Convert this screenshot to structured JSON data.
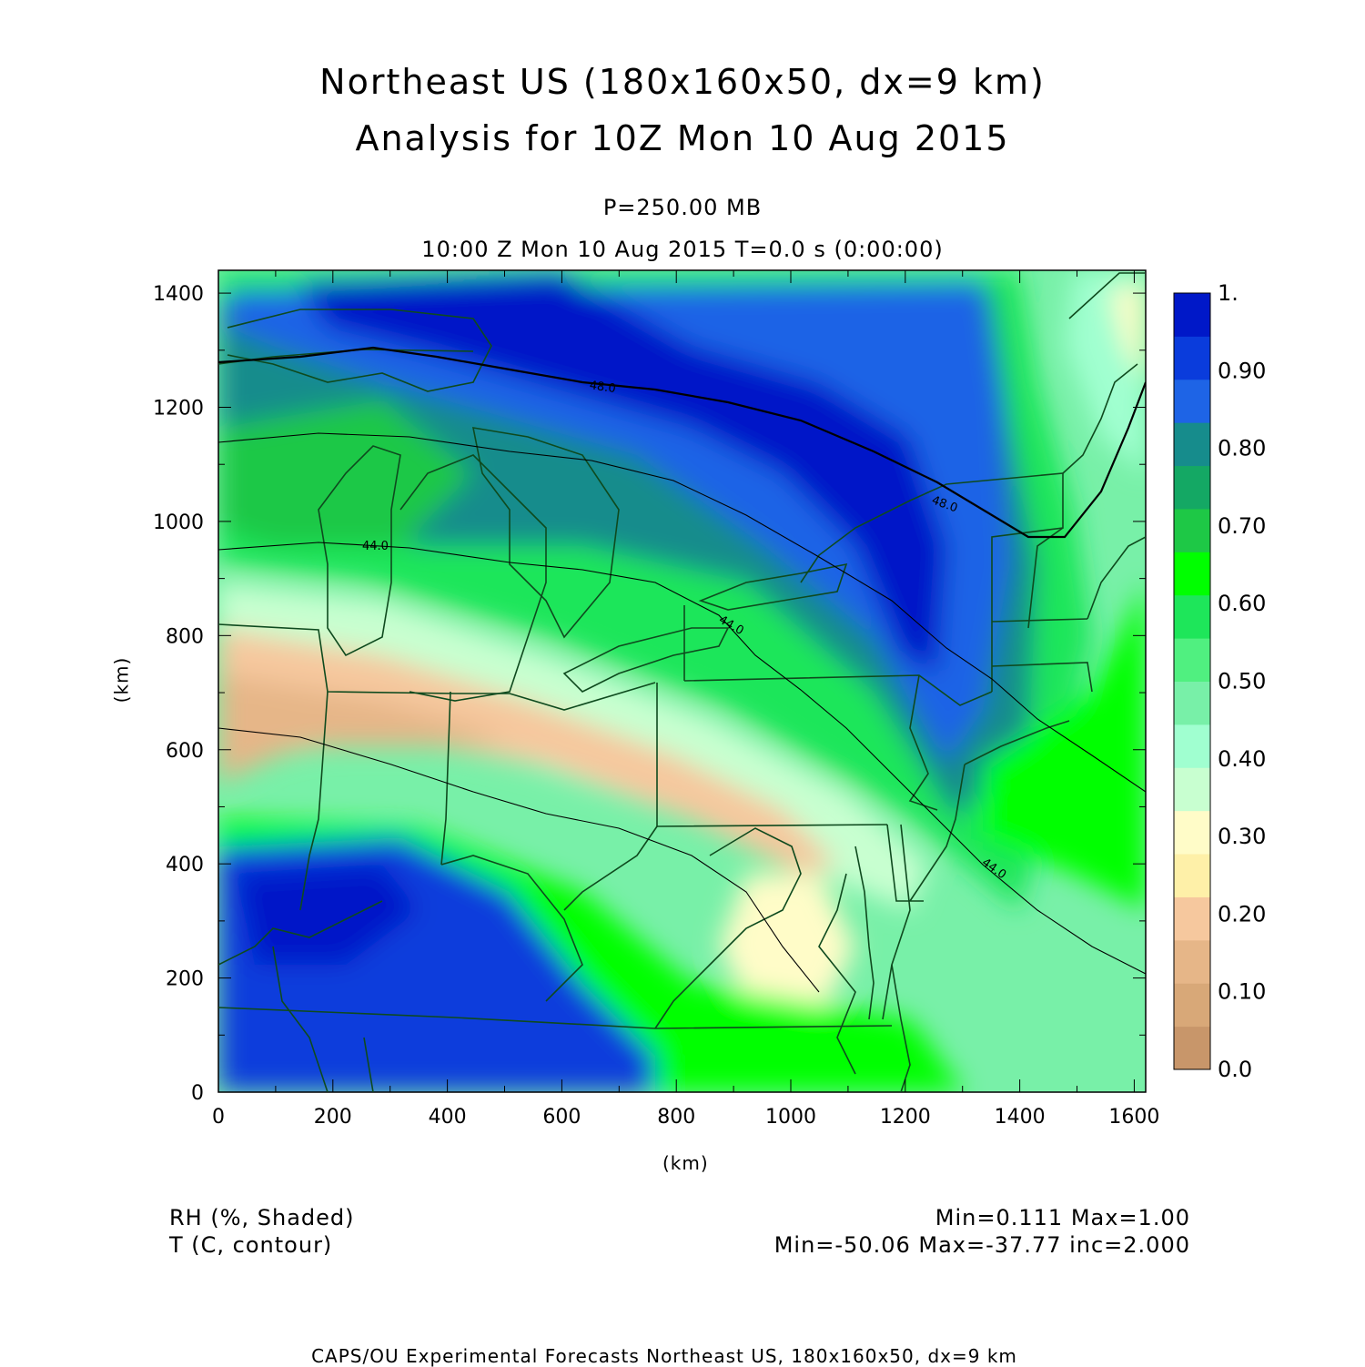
{
  "title": {
    "line1": "Northeast US (180x160x50, dx=9 km)",
    "line2": "Analysis for 10Z Mon 10 Aug 2015"
  },
  "level": "P=250.00 MB",
  "valid_time": "10:00 Z Mon 10 Aug 2015    T=0.0 s (0:00:00)",
  "axes": {
    "x_label": "(km)",
    "y_label": "(km)",
    "x_ticks": [
      "0",
      "200",
      "400",
      "600",
      "800",
      "1000",
      "1200",
      "1400",
      "1600"
    ],
    "y_ticks": [
      "0",
      "200",
      "400",
      "600",
      "800",
      "1000",
      "1200",
      "1400"
    ],
    "x_range": [
      0,
      1620
    ],
    "y_range": [
      0,
      1440
    ]
  },
  "colorbar": {
    "labels": [
      "1.",
      "0.90",
      "0.80",
      "0.70",
      "0.60",
      "0.50",
      "0.40",
      "0.30",
      "0.20",
      "0.10",
      "0.0"
    ],
    "colors": [
      "#c8966a",
      "#d8a878",
      "#e6b688",
      "#f6c89e",
      "#fef0a8",
      "#fffcc8",
      "#c8ffd0",
      "#a0ffd0",
      "#78f0a8",
      "#50f080",
      "#1ee65a",
      "#00ff00",
      "#1ec846",
      "#14a864",
      "#168c8c",
      "#1e64e6",
      "#0a3cdc",
      "#0018c8"
    ]
  },
  "contours": [
    {
      "label": "48.0"
    },
    {
      "label": "48.0"
    },
    {
      "label": "44.0"
    },
    {
      "label": "44.0"
    },
    {
      "label": "44.0"
    }
  ],
  "legend": {
    "field1": "RH (%, Shaded)",
    "field2": "T (C, contour)",
    "stats1": "Min=0.111  Max=1.00",
    "stats2": "Min=-50.06  Max=-37.77  inc=2.000"
  },
  "footer": "CAPS/OU Experimental Forecasts  Northeast US, 180x160x50, dx=9 km"
}
